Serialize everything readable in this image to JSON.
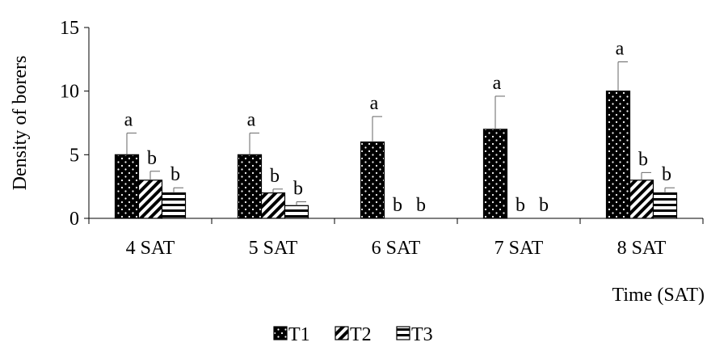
{
  "chart_data": {
    "type": "bar",
    "title": "",
    "xlabel": "Time (SAT)",
    "ylabel": "Density of borers",
    "ylim": [
      0,
      15
    ],
    "yticks": [
      0,
      5,
      10,
      15
    ],
    "grid": false,
    "legend_placement": "bottom-center",
    "categories": [
      "4 SAT",
      "5 SAT",
      "6 SAT",
      "7 SAT",
      "8 SAT"
    ],
    "series": [
      {
        "name": "T1",
        "pattern": "dots-on-black",
        "color": "#000000",
        "values": [
          5,
          5,
          6,
          7,
          10
        ],
        "errors": [
          1.7,
          1.7,
          2.0,
          2.6,
          2.3
        ],
        "labels": [
          "a",
          "a",
          "a",
          "a",
          "a"
        ]
      },
      {
        "name": "T2",
        "pattern": "diagonal-stripes",
        "color": "#000000",
        "values": [
          3,
          2,
          0,
          0,
          3
        ],
        "errors": [
          0.7,
          0.3,
          0,
          0,
          0.6
        ],
        "labels": [
          "b",
          "b",
          "b",
          "b",
          "b"
        ]
      },
      {
        "name": "T3",
        "pattern": "horizontal-stripes",
        "color": "#000000",
        "values": [
          2,
          1,
          0,
          0,
          2
        ],
        "errors": [
          0.4,
          0.3,
          0,
          0,
          0.4
        ],
        "labels": [
          "b",
          "b",
          "b",
          "b",
          "b"
        ]
      }
    ]
  }
}
